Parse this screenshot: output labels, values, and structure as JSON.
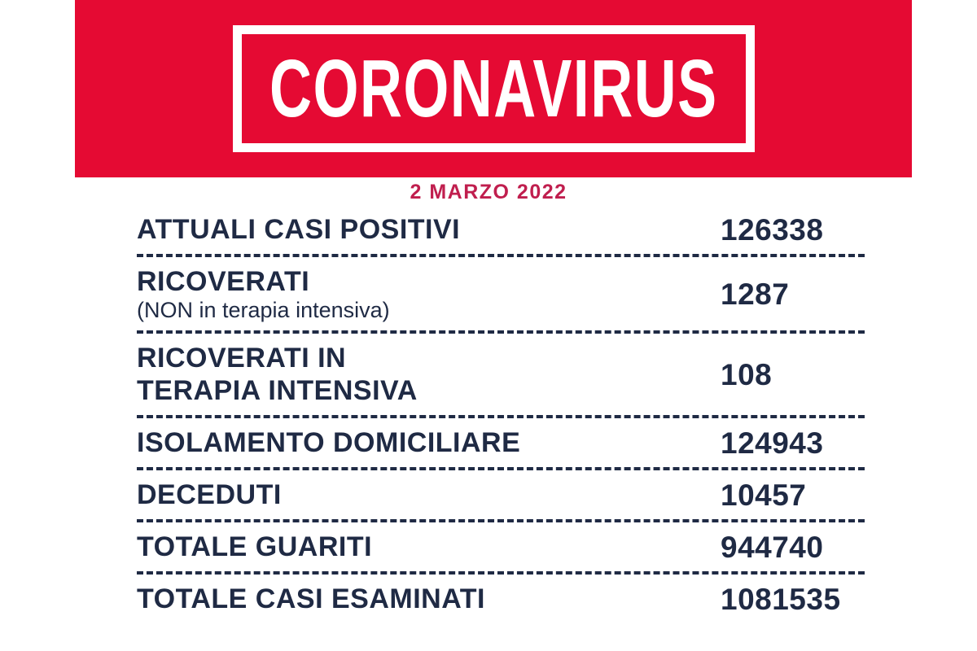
{
  "banner": {
    "title": "CORONAVIRUS"
  },
  "date_label": "2 MARZO 2022",
  "stats": {
    "rows": [
      {
        "label_lines": [
          "ATTUALI CASI POSITIVI"
        ],
        "sublabel": "",
        "value": "126338"
      },
      {
        "label_lines": [
          "RICOVERATI"
        ],
        "sublabel": "(NON in terapia intensiva)",
        "value": "1287"
      },
      {
        "label_lines": [
          "RICOVERATI IN",
          "TERAPIA INTENSIVA"
        ],
        "sublabel": "",
        "value": "108"
      },
      {
        "label_lines": [
          "ISOLAMENTO DOMICILIARE"
        ],
        "sublabel": "",
        "value": "124943"
      },
      {
        "label_lines": [
          "DECEDUTI"
        ],
        "sublabel": "",
        "value": "10457"
      },
      {
        "label_lines": [
          "TOTALE GUARITI"
        ],
        "sublabel": "",
        "value": "944740"
      },
      {
        "label_lines": [
          "TOTALE CASI ESAMINATI"
        ],
        "sublabel": "",
        "value": "1081535"
      }
    ]
  },
  "colors": {
    "banner_red": "#e50a33",
    "date_red": "#c01e4e",
    "text_navy": "#1f2a44",
    "frame_white": "#ffffff"
  },
  "chart_data": {
    "type": "table",
    "title": "CORONAVIRUS",
    "subtitle": "2 MARZO 2022",
    "categories": [
      "ATTUALI CASI POSITIVI",
      "RICOVERATI (NON in terapia intensiva)",
      "RICOVERATI IN TERAPIA INTENSIVA",
      "ISOLAMENTO DOMICILIARE",
      "DECEDUTI",
      "TOTALE GUARITI",
      "TOTALE CASI ESAMINATI"
    ],
    "values": [
      126338,
      1287,
      108,
      124943,
      10457,
      944740,
      1081535
    ]
  }
}
